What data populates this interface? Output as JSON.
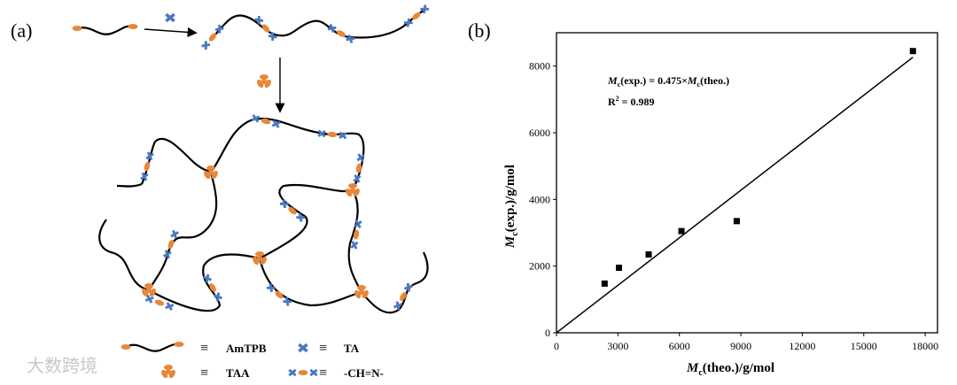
{
  "panel_a": {
    "label": "(a)",
    "legend": [
      {
        "equiv": "≡",
        "text": "AmTPB"
      },
      {
        "equiv": "≡",
        "text": "TA"
      },
      {
        "equiv": "≡",
        "text": "TAA"
      },
      {
        "equiv": "≡",
        "text": "-CH=N-"
      }
    ],
    "watermark": "大数跨境"
  },
  "chart_data": {
    "type": "scatter",
    "panel_label": "(b)",
    "x_label": {
      "symbol": "M",
      "sub": "c",
      "rest": "(theo.)/g/mol"
    },
    "y_label": {
      "symbol": "M",
      "sub": "c",
      "rest": "(exp.)/g/mol"
    },
    "annotations": [
      [
        "M",
        "c",
        "(exp.) = 0.475×",
        "M",
        "c",
        "(theo.)"
      ],
      [
        "R",
        "2",
        " = 0.989"
      ]
    ],
    "series": [
      {
        "color": "#000000",
        "x": [
          2350,
          3050,
          4500,
          6100,
          8800,
          17400
        ],
        "values": [
          1475,
          1950,
          2350,
          3050,
          3350,
          8450
        ]
      },
      {
        "type": "line",
        "color": "#000000",
        "x": [
          0,
          17400
        ],
        "values": [
          0,
          8265
        ]
      }
    ],
    "xlim": [
      0,
      18600
    ],
    "ylim": [
      0,
      9000
    ],
    "xticks": [
      0,
      3000,
      6000,
      9000,
      12000,
      15000,
      18000
    ],
    "yticks": [
      0,
      2000,
      4000,
      6000,
      8000
    ]
  }
}
